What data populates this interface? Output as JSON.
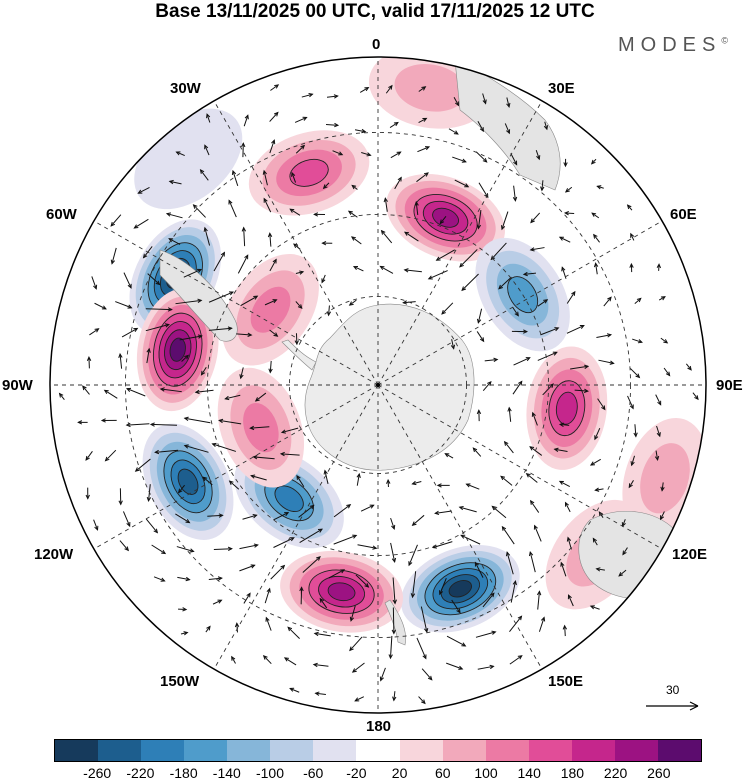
{
  "title": "Base 13/11/2025 00 UTC, valid 17/11/2025 12 UTC",
  "brand": "MODES",
  "brand_mark": "©",
  "longitude_labels": {
    "lon_0": "0",
    "lon_30e": "30E",
    "lon_60e": "60E",
    "lon_90e": "90E",
    "lon_120e": "120E",
    "lon_150e": "150E",
    "lon_180": "180",
    "lon_150w": "150W",
    "lon_120w": "120W",
    "lon_90w": "90W",
    "lon_60w": "60W",
    "lon_30w": "30W"
  },
  "vector_scale": {
    "label": "30"
  },
  "colorbar": {
    "colors": [
      "#163a5c",
      "#1d5e8e",
      "#2e7fb7",
      "#4f9ccb",
      "#86b6d9",
      "#b9cde6",
      "#e1e1f0",
      "#ffffff",
      "#f8d6dc",
      "#f2a9bb",
      "#ec7aa4",
      "#e14d98",
      "#c5268c",
      "#9c1282",
      "#5c0c6e"
    ],
    "tick_labels": [
      "-260",
      "-220",
      "-180",
      "-140",
      "-100",
      "-60",
      "-20",
      "20",
      "60",
      "100",
      "140",
      "180",
      "220",
      "260"
    ]
  },
  "anomaly_field": [
    {
      "lon": -62,
      "r": 0.7,
      "value": -260
    },
    {
      "lon": -80,
      "r": 0.62,
      "value": 240
    },
    {
      "lon": -55,
      "r": 0.4,
      "value": 80
    },
    {
      "lon": -18,
      "r": 0.68,
      "value": 120
    },
    {
      "lon": 22,
      "r": 0.55,
      "value": 220
    },
    {
      "lon": 58,
      "r": 0.52,
      "value": -140
    },
    {
      "lon": 97,
      "r": 0.58,
      "value": 160
    },
    {
      "lon": 128,
      "r": 0.84,
      "value": 60
    },
    {
      "lon": 108,
      "r": 0.92,
      "value": 40
    },
    {
      "lon": 158,
      "r": 0.67,
      "value": -280
    },
    {
      "lon": 190,
      "r": 0.64,
      "value": 220
    },
    {
      "lon": 218,
      "r": 0.44,
      "value": -180
    },
    {
      "lon": 243,
      "r": 0.65,
      "value": -220
    },
    {
      "lon": 250,
      "r": 0.38,
      "value": 100
    },
    {
      "lon": 10,
      "r": 0.92,
      "value": 70
    },
    {
      "lon": -40,
      "r": 0.9,
      "value": -30
    }
  ]
}
